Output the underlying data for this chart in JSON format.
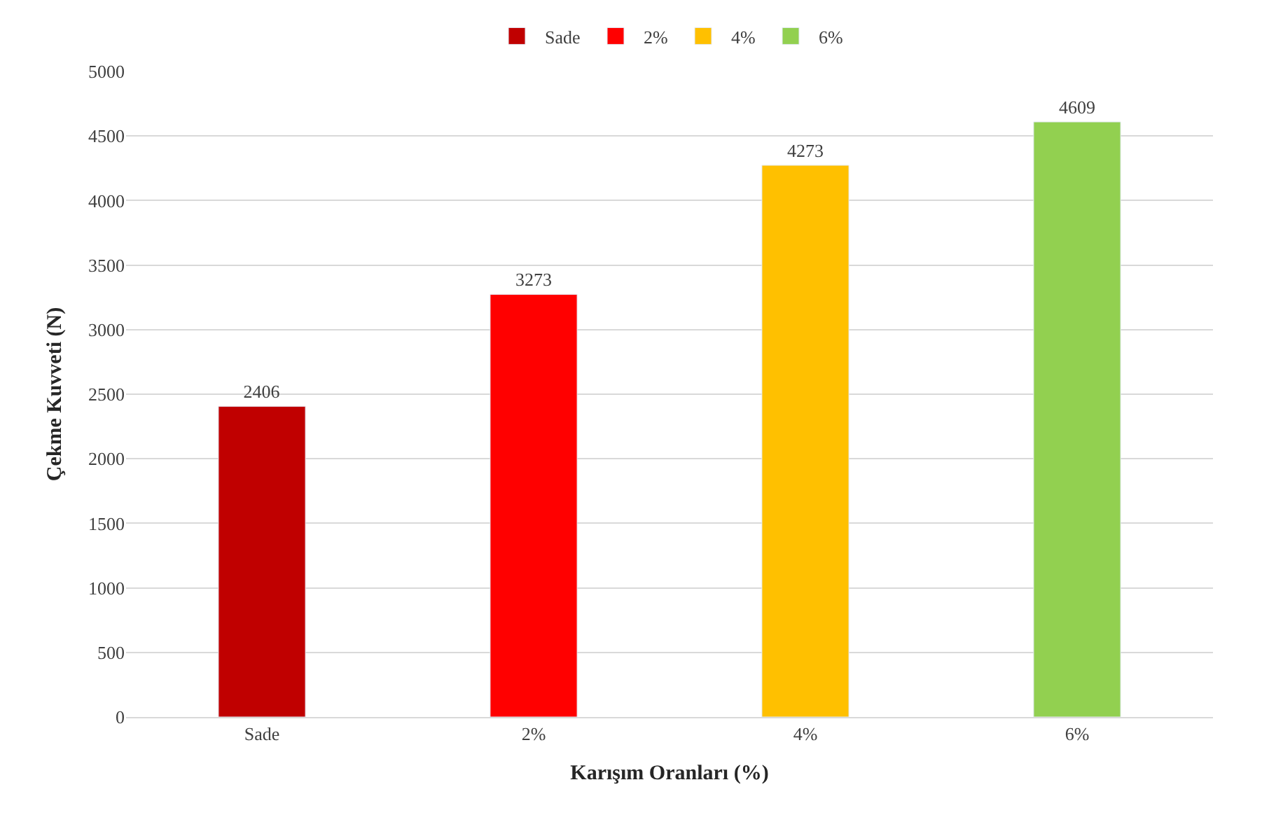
{
  "chart_data": {
    "type": "bar",
    "xlabel": "Karışım Oranları (%)",
    "ylabel": "Çekme Kuvveti (N)",
    "categories": [
      "Sade",
      "2%",
      "4%",
      "6%"
    ],
    "series": [
      {
        "name": "Sade",
        "color": "#c00000",
        "values": [
          2406,
          null,
          null,
          null
        ]
      },
      {
        "name": "2%",
        "color": "#ff0000",
        "values": [
          null,
          3273,
          null,
          null
        ]
      },
      {
        "name": "4%",
        "color": "#ffc000",
        "values": [
          null,
          null,
          4273,
          null
        ]
      },
      {
        "name": "6%",
        "color": "#92d050",
        "values": [
          null,
          null,
          null,
          4609
        ]
      }
    ],
    "ylim": [
      0,
      5000
    ],
    "yticks": [
      0,
      500,
      1000,
      1500,
      2000,
      2500,
      3000,
      3500,
      4000,
      4500,
      5000
    ],
    "grid": "y",
    "legend": "top",
    "data_labels": true
  }
}
